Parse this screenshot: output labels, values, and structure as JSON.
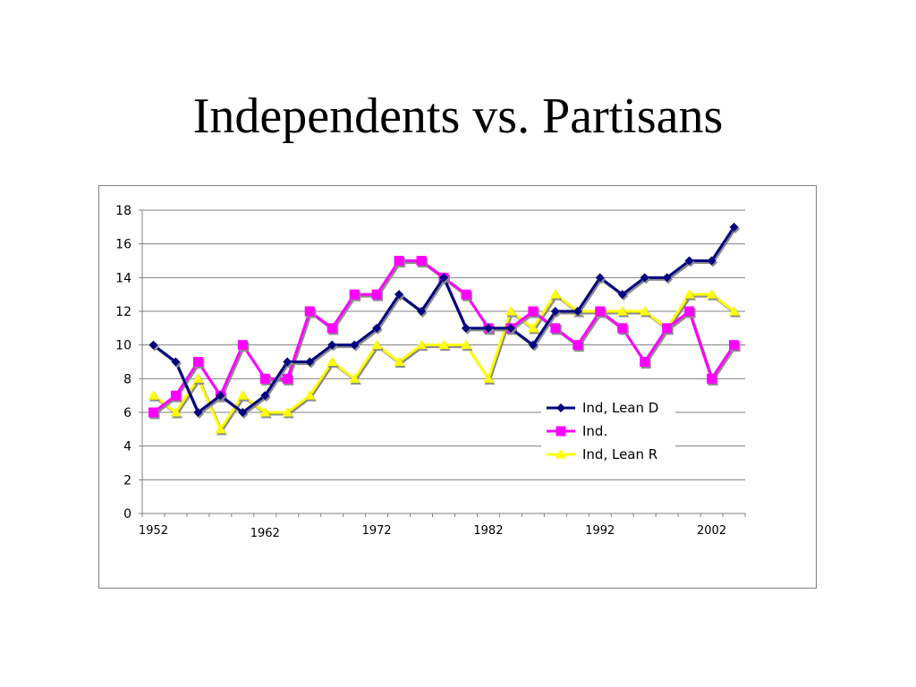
{
  "slide": {
    "title": "Independents vs. Partisans"
  },
  "chart_data": {
    "type": "line",
    "title": "Independents vs. Partisans",
    "xlabel": "",
    "ylabel": "",
    "ylim": [
      0,
      18
    ],
    "yticks": [
      0,
      2,
      4,
      6,
      8,
      10,
      12,
      14,
      16,
      18
    ],
    "x": [
      1952,
      1954,
      1956,
      1958,
      1960,
      1962,
      1964,
      1966,
      1968,
      1970,
      1972,
      1974,
      1976,
      1978,
      1980,
      1982,
      1984,
      1986,
      1988,
      1990,
      1992,
      1994,
      1996,
      1998,
      2000,
      2002,
      2004
    ],
    "xtick_labels": [
      "1952",
      "1962",
      "1972",
      "1982",
      "1992",
      "2002"
    ],
    "grid": "horizontal",
    "legend_position": "right",
    "series": [
      {
        "name": "Ind, Lean D",
        "color": "#000080",
        "marker": "diamond",
        "values": [
          10,
          9,
          6,
          7,
          6,
          7,
          9,
          9,
          10,
          10,
          11,
          13,
          12,
          14,
          11,
          11,
          11,
          10,
          12,
          12,
          14,
          13,
          14,
          14,
          15,
          15,
          17
        ]
      },
      {
        "name": "Ind.",
        "color": "#FF00FF",
        "marker": "square",
        "values": [
          6,
          7,
          9,
          7,
          10,
          8,
          8,
          12,
          11,
          13,
          13,
          15,
          15,
          14,
          13,
          11,
          11,
          12,
          11,
          10,
          12,
          11,
          9,
          11,
          12,
          8,
          10
        ]
      },
      {
        "name": "Ind, Lean R",
        "color": "#FFFF00",
        "marker": "triangle",
        "values": [
          7,
          6,
          8,
          5,
          7,
          6,
          6,
          7,
          9,
          8,
          10,
          9,
          10,
          10,
          10,
          8,
          12,
          11,
          13,
          12,
          12,
          12,
          12,
          11,
          13,
          13,
          12
        ]
      }
    ]
  }
}
